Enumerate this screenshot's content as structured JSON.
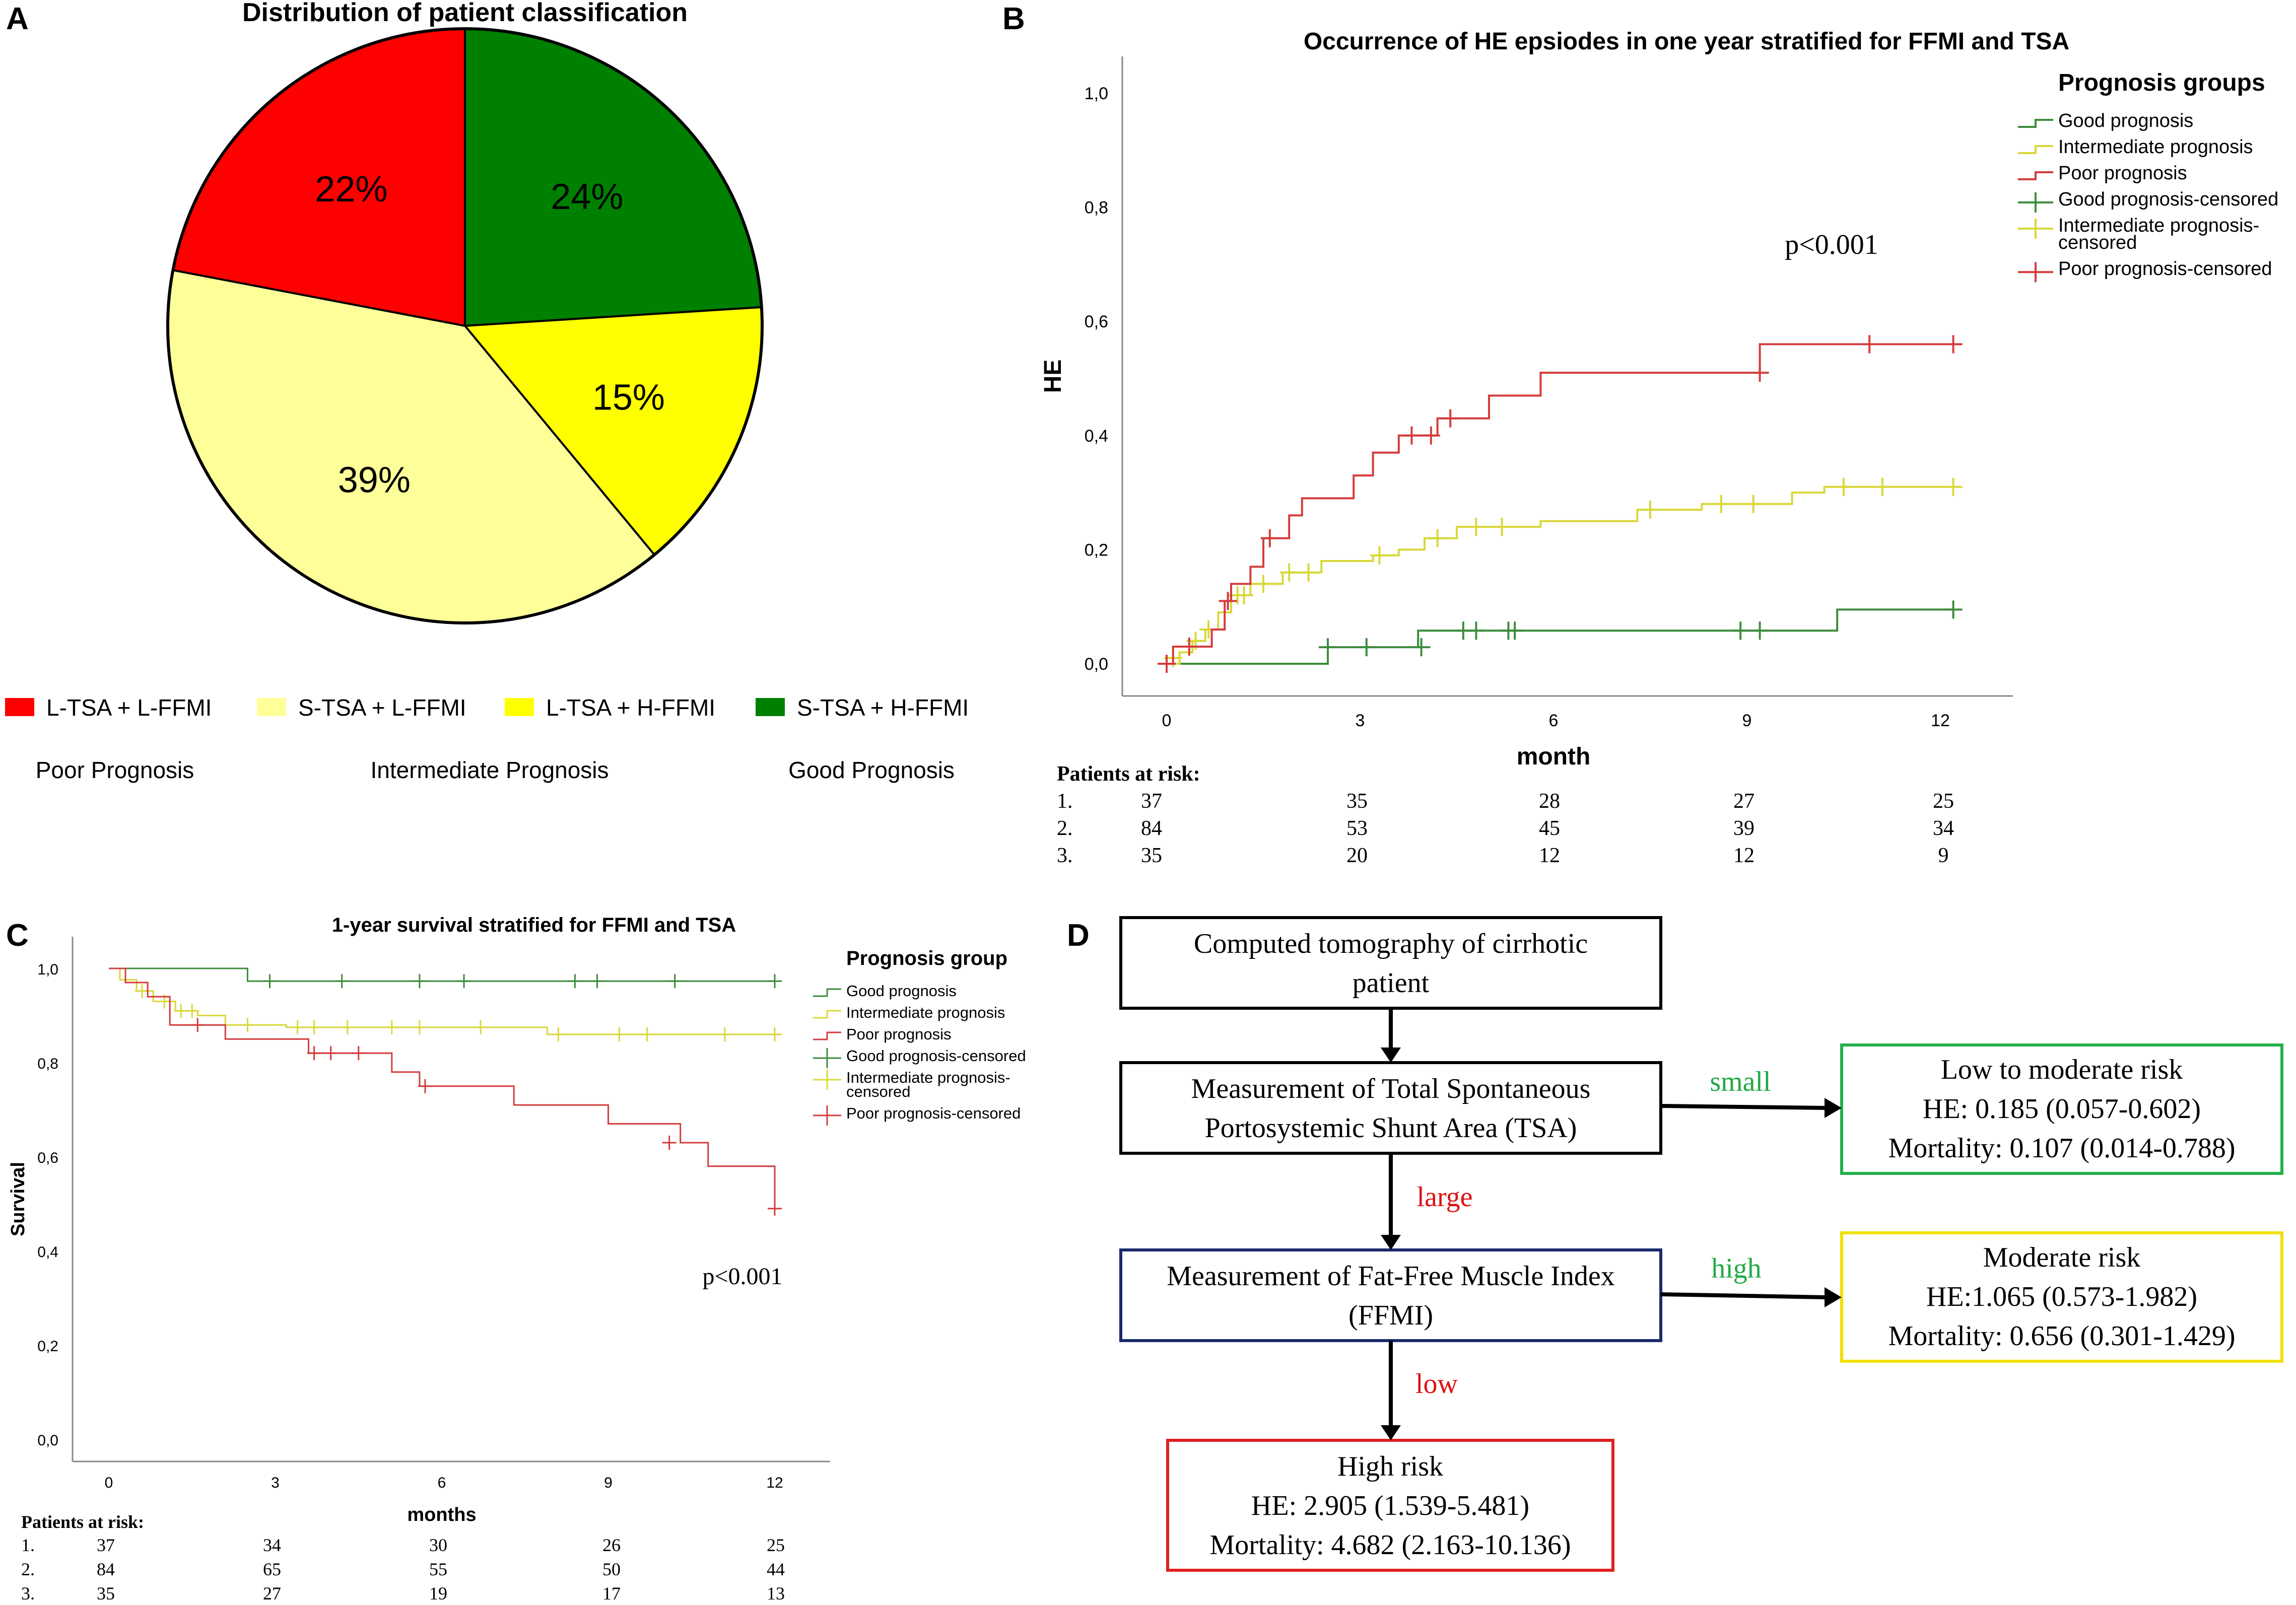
{
  "panels": {
    "A": {
      "letter": "A",
      "chart_data": {
        "type": "pie",
        "title": "Distribution of patient classification",
        "slices": [
          {
            "label": "S-TSA + H-FFMI",
            "value": 24,
            "text": "24%",
            "color": "#008000"
          },
          {
            "label": "L-TSA + H-FFMI",
            "value": 15,
            "text": "15%",
            "color": "#ffff00"
          },
          {
            "label": "S-TSA + L-FFMI",
            "value": 39,
            "text": "39%",
            "color": "#ffff99"
          },
          {
            "label": "L-TSA + L-FFMI",
            "value": 22,
            "text": "22%",
            "color": "#ff0000"
          }
        ],
        "legend": [
          {
            "label": "L-TSA + L-FFMI",
            "color": "#ff0000"
          },
          {
            "label": "S-TSA + L-FFMI",
            "color": "#ffff99"
          },
          {
            "label": "L-TSA + H-FFMI",
            "color": "#ffff00"
          },
          {
            "label": "S-TSA + H-FFMI",
            "color": "#008000"
          }
        ],
        "groups": [
          "Poor Prognosis",
          "Intermediate Prognosis",
          "Good Prognosis"
        ]
      }
    },
    "B": {
      "letter": "B",
      "chart_data": {
        "type": "line",
        "title": "Occurrence of HE epsiodes in one year stratified for FFMI and TSA",
        "xlabel": "month",
        "ylabel": "HE",
        "xlim": [
          0,
          12
        ],
        "ylim": [
          0,
          1
        ],
        "xticks": [
          {
            "v": 0,
            "t": "0"
          },
          {
            "v": 3,
            "t": "3"
          },
          {
            "v": 6,
            "t": "6"
          },
          {
            "v": 9,
            "t": "9"
          },
          {
            "v": 12,
            "t": "12"
          }
        ],
        "yticks": [
          {
            "v": 0,
            "t": "0,0"
          },
          {
            "v": 0.2,
            "t": "0,2"
          },
          {
            "v": 0.4,
            "t": "0,4"
          },
          {
            "v": 0.6,
            "t": "0,6"
          },
          {
            "v": 0.8,
            "t": "0,8"
          },
          {
            "v": 1,
            "t": "1,0"
          }
        ],
        "annotation": "p<0.001",
        "legend_title": "Prognosis groups",
        "legend": [
          {
            "label": "Good prognosis",
            "color": "#3c8c3c",
            "kind": "line"
          },
          {
            "label": "Intermediate prognosis",
            "color": "#d8d83a",
            "kind": "line"
          },
          {
            "label": "Poor prognosis",
            "color": "#d43c3c",
            "kind": "line"
          },
          {
            "label": "Good prognosis-censored",
            "color": "#3c8c3c",
            "kind": "plus"
          },
          {
            "label": "Intermediate prognosis-censored",
            "color": "#d8d83a",
            "kind": "plus"
          },
          {
            "label": "Poor prognosis-censored",
            "color": "#d43c3c",
            "kind": "plus"
          }
        ],
        "series": [
          {
            "name": "Good prognosis",
            "color": "#3c8c3c",
            "steps": [
              [
                0,
                0
              ],
              [
                2.5,
                0.029
              ],
              [
                3.9,
                0.058
              ],
              [
                10.4,
                0.095
              ],
              [
                12.2,
                0.095
              ]
            ],
            "censored": [
              [
                2.5,
                0.029
              ],
              [
                3.1,
                0.029
              ],
              [
                3.95,
                0.029
              ],
              [
                4.6,
                0.058
              ],
              [
                4.8,
                0.058
              ],
              [
                5.3,
                0.058
              ],
              [
                5.4,
                0.058
              ],
              [
                8.9,
                0.058
              ],
              [
                9.2,
                0.058
              ],
              [
                12.2,
                0.095
              ]
            ]
          },
          {
            "name": "Intermediate prognosis",
            "color": "#d8d83a",
            "steps": [
              [
                0,
                0
              ],
              [
                0.2,
                0.02
              ],
              [
                0.4,
                0.04
              ],
              [
                0.6,
                0.06
              ],
              [
                0.8,
                0.09
              ],
              [
                1.0,
                0.12
              ],
              [
                1.3,
                0.14
              ],
              [
                1.8,
                0.16
              ],
              [
                2.4,
                0.18
              ],
              [
                3.2,
                0.19
              ],
              [
                3.6,
                0.2
              ],
              [
                4.0,
                0.22
              ],
              [
                4.5,
                0.24
              ],
              [
                5.8,
                0.25
              ],
              [
                7.3,
                0.27
              ],
              [
                8.3,
                0.28
              ],
              [
                9.7,
                0.3
              ],
              [
                10.2,
                0.31
              ],
              [
                12.2,
                0.31
              ]
            ],
            "censored": [
              [
                0.1,
                0.01
              ],
              [
                0.45,
                0.04
              ],
              [
                0.65,
                0.06
              ],
              [
                1.1,
                0.12
              ],
              [
                1.2,
                0.12
              ],
              [
                1.5,
                0.14
              ],
              [
                1.9,
                0.16
              ],
              [
                2.2,
                0.16
              ],
              [
                3.3,
                0.19
              ],
              [
                4.2,
                0.22
              ],
              [
                4.8,
                0.24
              ],
              [
                5.2,
                0.24
              ],
              [
                7.5,
                0.27
              ],
              [
                8.6,
                0.28
              ],
              [
                9.1,
                0.28
              ],
              [
                10.5,
                0.31
              ],
              [
                11.1,
                0.31
              ],
              [
                12.2,
                0.31
              ]
            ]
          },
          {
            "name": "Poor prognosis",
            "color": "#d43c3c",
            "steps": [
              [
                0,
                0
              ],
              [
                0.1,
                0.03
              ],
              [
                0.7,
                0.06
              ],
              [
                0.9,
                0.11
              ],
              [
                1.0,
                0.14
              ],
              [
                1.3,
                0.17
              ],
              [
                1.5,
                0.22
              ],
              [
                1.9,
                0.26
              ],
              [
                2.1,
                0.29
              ],
              [
                2.9,
                0.33
              ],
              [
                3.2,
                0.37
              ],
              [
                3.6,
                0.4
              ],
              [
                4.2,
                0.43
              ],
              [
                5.0,
                0.47
              ],
              [
                5.8,
                0.51
              ],
              [
                9.2,
                0.56
              ],
              [
                12.2,
                0.56
              ]
            ],
            "censored": [
              [
                0,
                0
              ],
              [
                0.35,
                0.03
              ],
              [
                0.95,
                0.11
              ],
              [
                1.6,
                0.22
              ],
              [
                3.8,
                0.4
              ],
              [
                4.1,
                0.4
              ],
              [
                4.4,
                0.43
              ],
              [
                9.2,
                0.51
              ],
              [
                10.9,
                0.56
              ],
              [
                12.2,
                0.56
              ]
            ]
          }
        ],
        "risk_table": {
          "title": "Patients at risk:",
          "rows": [
            {
              "label": "1.",
              "values": [
                "37",
                "35",
                "28",
                "27",
                "25"
              ]
            },
            {
              "label": "2.",
              "values": [
                "84",
                "53",
                "45",
                "39",
                "34"
              ]
            },
            {
              "label": "3.",
              "values": [
                "35",
                "20",
                "12",
                "12",
                "9"
              ]
            }
          ]
        }
      }
    },
    "C": {
      "letter": "C",
      "chart_data": {
        "type": "line",
        "title": "1-year survival stratified for FFMI and TSA",
        "xlabel": "months",
        "ylabel": "Survival",
        "xlim": [
          0,
          12
        ],
        "ylim": [
          0,
          1
        ],
        "xticks": [
          {
            "v": 0,
            "t": "0"
          },
          {
            "v": 3,
            "t": "3"
          },
          {
            "v": 6,
            "t": "6"
          },
          {
            "v": 9,
            "t": "9"
          },
          {
            "v": 12,
            "t": "12"
          }
        ],
        "yticks": [
          {
            "v": 0,
            "t": "0,0"
          },
          {
            "v": 0.2,
            "t": "0,2"
          },
          {
            "v": 0.4,
            "t": "0,4"
          },
          {
            "v": 0.6,
            "t": "0,6"
          },
          {
            "v": 0.8,
            "t": "0,8"
          },
          {
            "v": 1,
            "t": "1,0"
          }
        ],
        "annotation": "p<0.001",
        "legend_title": "Prognosis group",
        "legend": [
          {
            "label": "Good prognosis",
            "color": "#3c8c3c",
            "kind": "line"
          },
          {
            "label": "Intermediate prognosis",
            "color": "#d8d83a",
            "kind": "line"
          },
          {
            "label": "Poor prognosis",
            "color": "#d43c3c",
            "kind": "line"
          },
          {
            "label": "Good prognosis-censored",
            "color": "#3c8c3c",
            "kind": "plus"
          },
          {
            "label": "Intermediate prognosis-censored",
            "color": "#d8d83a",
            "kind": "plus"
          },
          {
            "label": "Poor prognosis-censored",
            "color": "#d43c3c",
            "kind": "plus"
          }
        ],
        "series": [
          {
            "name": "Good prognosis",
            "color": "#3c8c3c",
            "steps": [
              [
                0,
                1
              ],
              [
                2.5,
                0.973
              ],
              [
                12,
                0.973
              ]
            ],
            "censored": [
              [
                2.9,
                0.973
              ],
              [
                4.2,
                0.973
              ],
              [
                5.6,
                0.973
              ],
              [
                6.4,
                0.973
              ],
              [
                8.4,
                0.973
              ],
              [
                8.8,
                0.973
              ],
              [
                10.2,
                0.973
              ],
              [
                12,
                0.973
              ]
            ]
          },
          {
            "name": "Intermediate prognosis",
            "color": "#d8d83a",
            "steps": [
              [
                0,
                1
              ],
              [
                0.2,
                0.976
              ],
              [
                0.5,
                0.952
              ],
              [
                0.8,
                0.93
              ],
              [
                1.2,
                0.91
              ],
              [
                1.6,
                0.9
              ],
              [
                2.1,
                0.88
              ],
              [
                3.2,
                0.875
              ],
              [
                7.9,
                0.86
              ],
              [
                12,
                0.86
              ]
            ],
            "censored": [
              [
                0.6,
                0.952
              ],
              [
                1.0,
                0.93
              ],
              [
                1.3,
                0.91
              ],
              [
                1.5,
                0.91
              ],
              [
                2.5,
                0.88
              ],
              [
                3.4,
                0.875
              ],
              [
                3.7,
                0.875
              ],
              [
                4.3,
                0.875
              ],
              [
                5.1,
                0.875
              ],
              [
                5.6,
                0.875
              ],
              [
                6.7,
                0.875
              ],
              [
                8.1,
                0.86
              ],
              [
                9.2,
                0.86
              ],
              [
                9.7,
                0.86
              ],
              [
                11.1,
                0.86
              ],
              [
                12,
                0.86
              ]
            ]
          },
          {
            "name": "Poor prognosis",
            "color": "#d43c3c",
            "steps": [
              [
                0,
                1
              ],
              [
                0.3,
                0.97
              ],
              [
                0.7,
                0.94
              ],
              [
                1.1,
                0.88
              ],
              [
                2.1,
                0.85
              ],
              [
                3.6,
                0.82
              ],
              [
                5.1,
                0.78
              ],
              [
                5.6,
                0.75
              ],
              [
                7.3,
                0.71
              ],
              [
                9.0,
                0.67
              ],
              [
                10.3,
                0.63
              ],
              [
                10.8,
                0.58
              ],
              [
                12,
                0.49
              ]
            ],
            "censored": [
              [
                1.6,
                0.88
              ],
              [
                3.7,
                0.82
              ],
              [
                4.0,
                0.82
              ],
              [
                4.5,
                0.82
              ],
              [
                5.7,
                0.75
              ],
              [
                10.1,
                0.63
              ],
              [
                12,
                0.49
              ]
            ]
          }
        ],
        "risk_table": {
          "title": "Patients at risk:",
          "rows": [
            {
              "label": "1.",
              "values": [
                "37",
                "34",
                "30",
                "26",
                "25"
              ]
            },
            {
              "label": "2.",
              "values": [
                "84",
                "65",
                "55",
                "50",
                "44"
              ]
            },
            {
              "label": "3.",
              "values": [
                "35",
                "27",
                "19",
                "17",
                "13"
              ]
            }
          ]
        }
      }
    },
    "D": {
      "letter": "D",
      "flow": {
        "ct": [
          "Computed tomography of cirrhotic",
          "patient"
        ],
        "tsa": [
          "Measurement of Total Spontaneous",
          "Portosystemic Shunt Area (TSA)"
        ],
        "ffmi": [
          "Measurement of Fat-Free Muscle Index",
          "(FFMI)"
        ],
        "low_risk": [
          "Low to moderate risk",
          "HE: 0.185 (0.057-0.602)",
          "Mortality: 0.107 (0.014-0.788)"
        ],
        "moderate_risk": [
          "Moderate risk",
          "HE:1.065 (0.573-1.982)",
          "Mortality: 0.656 (0.301-1.429)"
        ],
        "high_risk": [
          "High risk",
          "HE: 2.905 (1.539-5.481)",
          "Mortality: 4.682 (2.163-10.136)"
        ],
        "label_small": "small",
        "label_large": "large",
        "label_high": "high",
        "label_low": "low",
        "colors": {
          "green": "#22aa44",
          "red": "#e01010",
          "navy": "#1a2a6c",
          "yellow": "#f0e000",
          "green_box": "#22b04b",
          "red_box": "#e02020"
        }
      }
    }
  }
}
